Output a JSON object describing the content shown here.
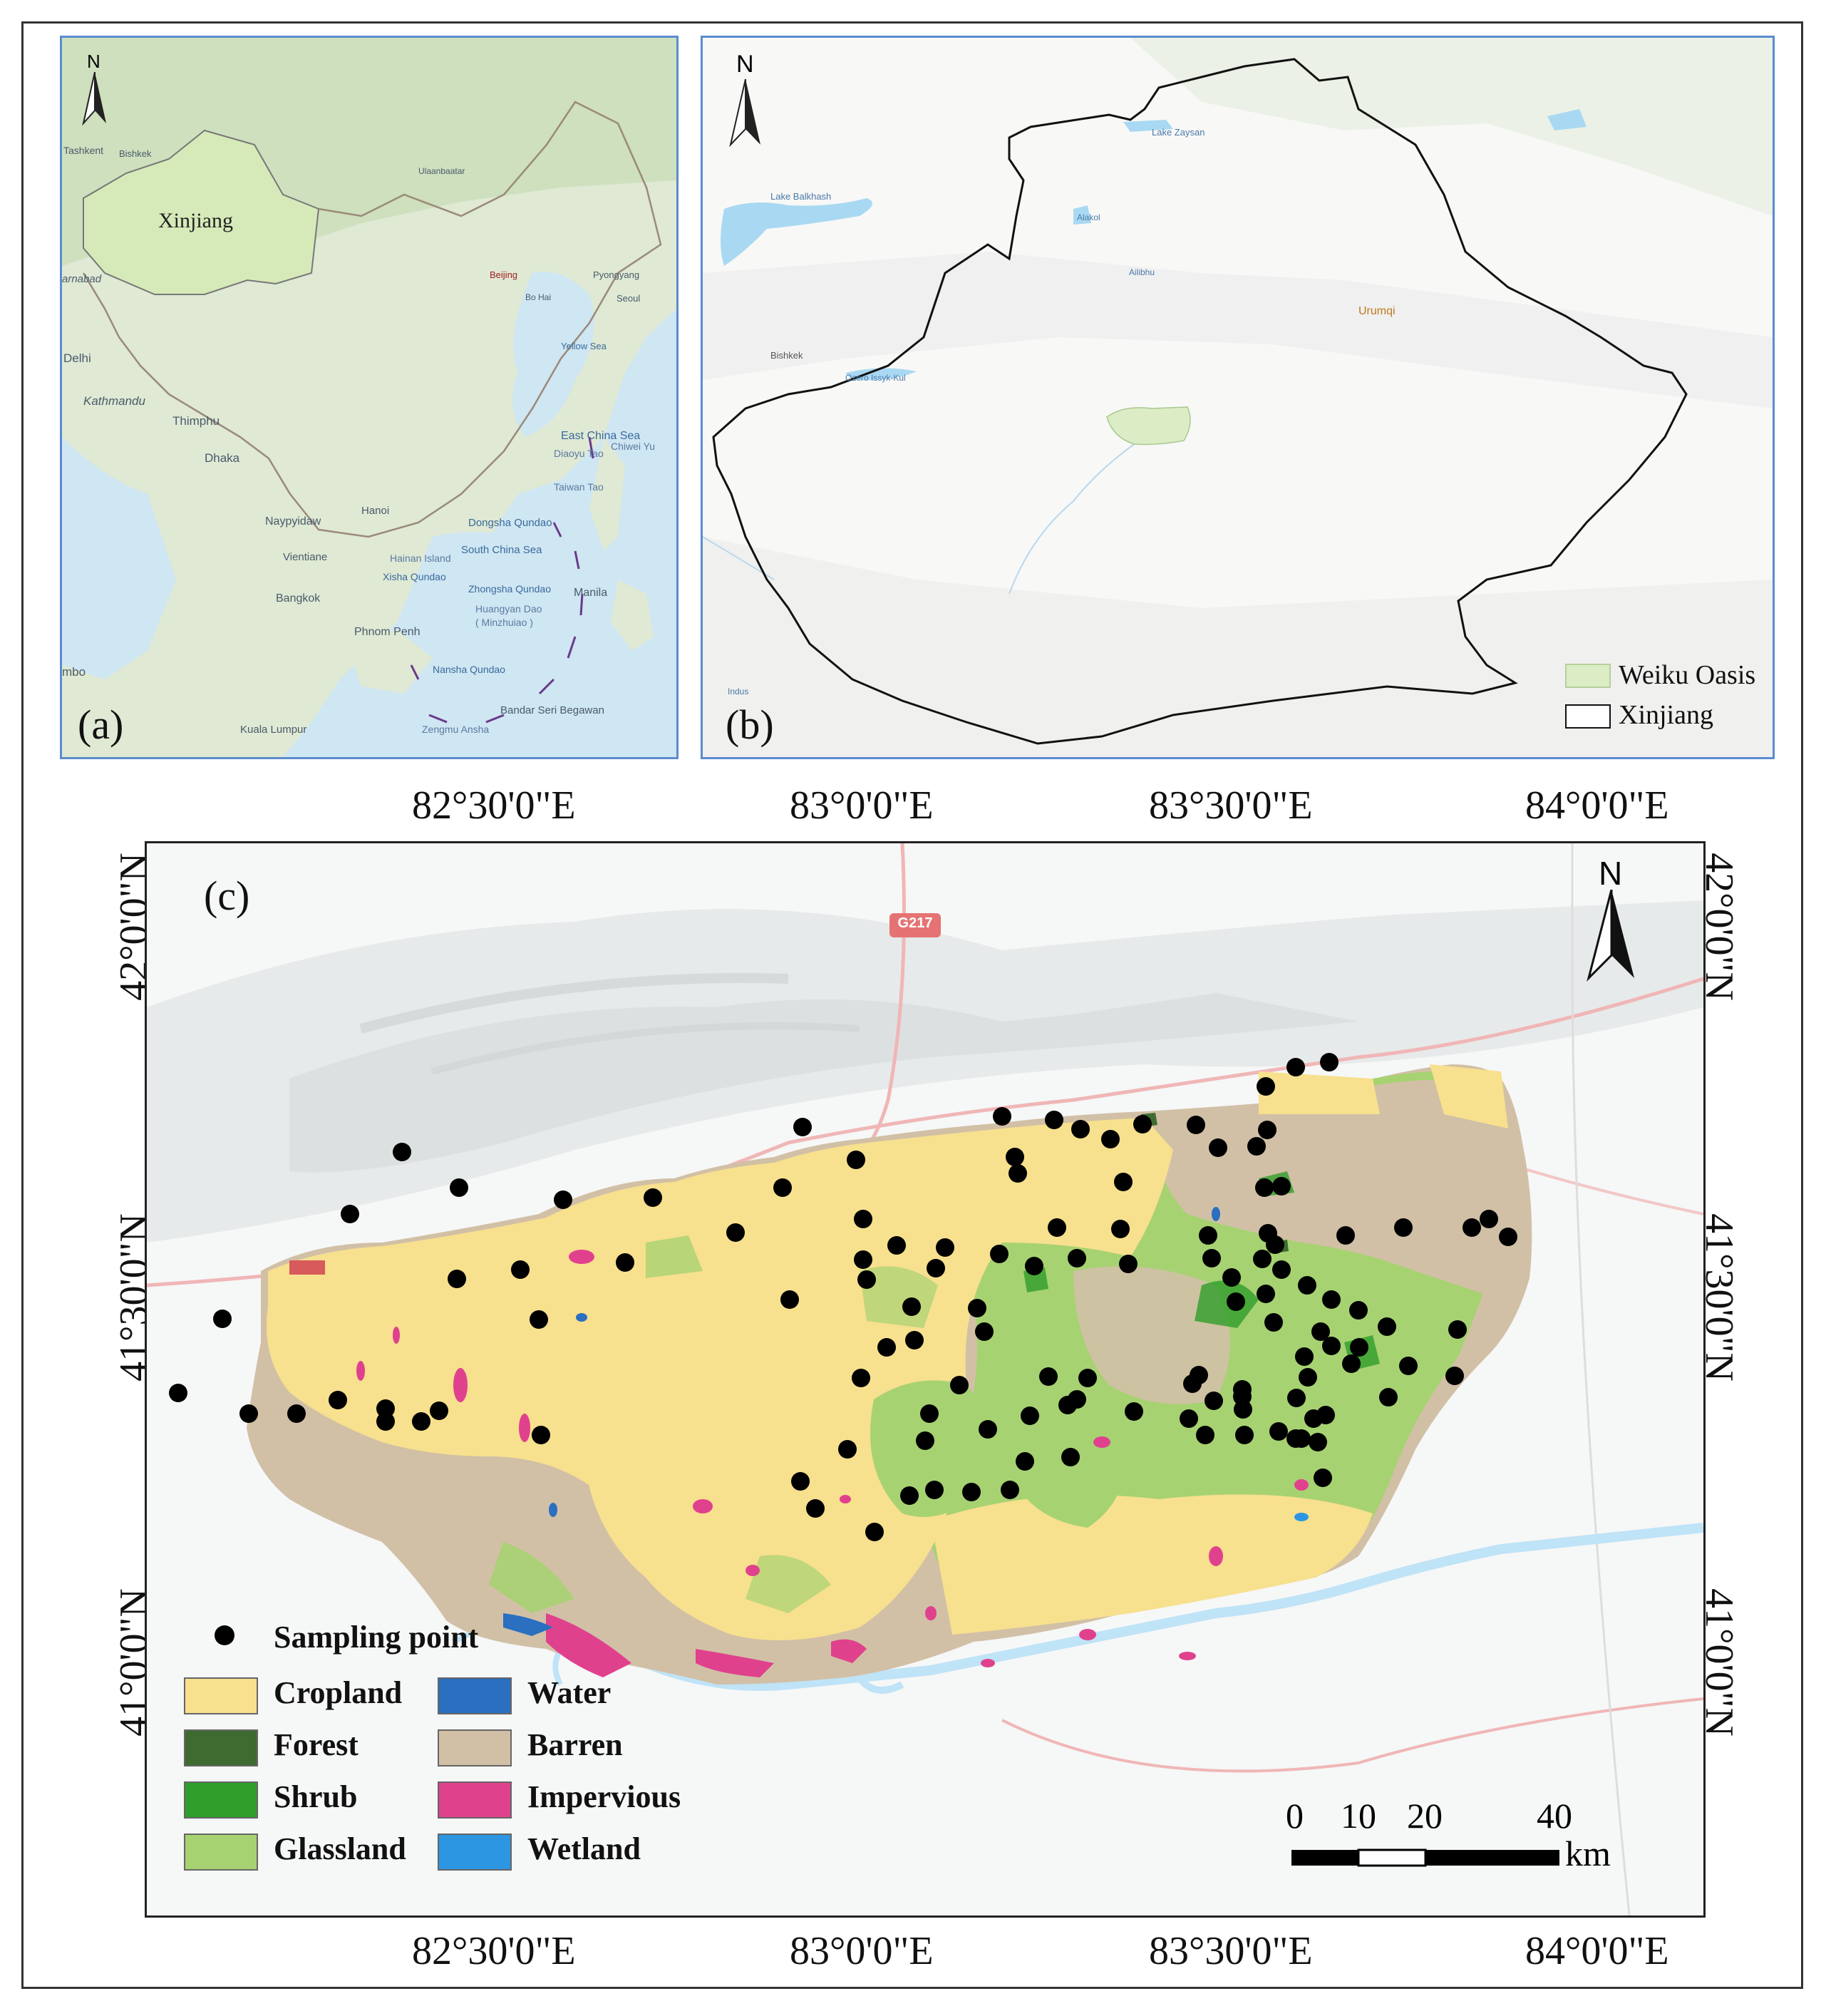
{
  "panel_a": {
    "label": "(a)",
    "north": "N",
    "region_label": "Xinjiang",
    "places": [
      "Ulaanbaatar",
      "Tashkent",
      "Bishkek",
      "Beijing",
      "Bo Hai",
      "Pyongyang",
      "Seoul",
      "Yellow Sea",
      "Delhi",
      "Kathmandu",
      "Thimphu",
      "Dhaka",
      "East China Sea",
      "Diaoyu Tao",
      "Chiwei Yu",
      "Taiwan Tao",
      "Hanoi",
      "Naypyidaw",
      "Dongsha Qundao",
      "Hainan Island",
      "South China Sea",
      "Vientiane",
      "Xisha Qundao",
      "Zhongsha Qundao",
      "Huangyan Dao",
      "( Minzhuiao )",
      "Bangkok",
      "Manila",
      "Phnom Penh",
      "Nansha Qundao",
      "Bandar Seri Begawan",
      "Kuala Lumpur",
      "Zengmu Ansha",
      "mbo",
      "arnabad"
    ]
  },
  "panel_b": {
    "label": "(b)",
    "north": "N",
    "places": [
      "Lake Zaysan",
      "Lake Balkhash",
      "Alakol",
      "Ailibhu",
      "Urumqi",
      "Bishkek",
      "Ozero Issyk-Kul",
      "Indus"
    ],
    "legend": [
      {
        "label": "Weiku Oasis",
        "color": "#dcedc6"
      },
      {
        "label": "Xinjiang",
        "color": "#ffffff"
      }
    ]
  },
  "panel_c": {
    "label": "(c)",
    "north": "N",
    "road_label": "G217",
    "lon_labels": [
      "82°30'0\"E",
      "83°0'0\"E",
      "83°30'0\"E",
      "84°0'0\"E"
    ],
    "lat_labels": [
      "42°0'0\"N",
      "41°30'0\"N",
      "41°0'0\"N"
    ],
    "legend_point": "Sampling point",
    "legend": [
      {
        "label": "Cropland",
        "color": "#f7e08e"
      },
      {
        "label": "Water",
        "color": "#2a6fc0"
      },
      {
        "label": "Forest",
        "color": "#3e6b30"
      },
      {
        "label": "Barren",
        "color": "#d1c0a6"
      },
      {
        "label": "Shrub",
        "color": "#2f9e2b"
      },
      {
        "label": "Impervious",
        "color": "#e0418d"
      },
      {
        "label": "Glassland",
        "color": "#a7d272"
      },
      {
        "label": "Wetland",
        "color": "#2d96e3"
      }
    ],
    "scale": {
      "ticks": [
        "0",
        "10",
        "20",
        "40"
      ],
      "unit": "km"
    }
  }
}
